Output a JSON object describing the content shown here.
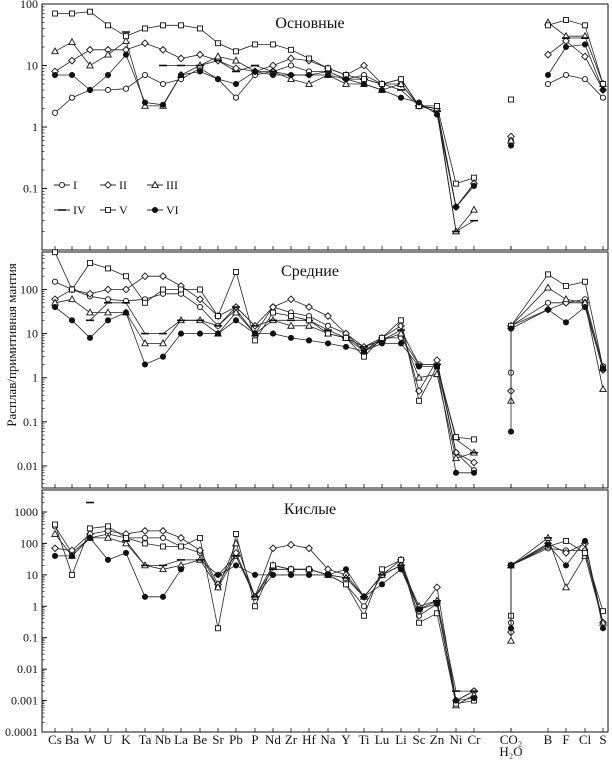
{
  "chart_data": {
    "type": "line",
    "ylabel": "Расплав/примитивная мантия",
    "yscale": "log",
    "categories": [
      "Cs",
      "Ba",
      "W",
      "U",
      "K",
      "Ta",
      "Nb",
      "La",
      "Be",
      "Sr",
      "Pb",
      "P",
      "Nd",
      "Zr",
      "Hf",
      "Na",
      "Y",
      "Ti",
      "Lu",
      "Li",
      "Sc",
      "Zn",
      "Ni",
      "Cr",
      "CO2",
      "H2O",
      "B",
      "F",
      "Cl",
      "S"
    ],
    "category_labels": [
      "Cs",
      "Ba",
      "W",
      "U",
      "K",
      "Ta",
      "Nb",
      "La",
      "Be",
      "Sr",
      "Pb",
      "P",
      "Nd",
      "Zr",
      "Hf",
      "Na",
      "Y",
      "Ti",
      "Lu",
      "Li",
      "Sc",
      "Zn",
      "Ni",
      "Cr",
      "CO₂",
      "H₂O",
      "B",
      "F",
      "Cl",
      "S"
    ],
    "legend": {
      "location": "upper-left of top panel",
      "entries": [
        "I",
        "II",
        "III",
        "IV",
        "V",
        "VI"
      ]
    },
    "series_styles": {
      "I": {
        "marker": "circle-open"
      },
      "II": {
        "marker": "diamond-open"
      },
      "III": {
        "marker": "triangle-open"
      },
      "IV": {
        "marker": "dash"
      },
      "V": {
        "marker": "square-open"
      },
      "VI": {
        "marker": "circle-filled"
      }
    },
    "panels": [
      {
        "title": "Основные",
        "ylim": [
          0.01,
          100
        ],
        "yticks": [
          "100",
          "10",
          "1",
          "0.1"
        ],
        "series": [
          {
            "name": "I",
            "values": [
              1.7,
              3,
              4,
              4,
              4.2,
              7,
              5,
              6,
              9,
              6,
              3,
              7,
              8,
              10,
              8,
              8,
              6,
              7,
              5,
              6,
              2.2,
              2,
              0.05,
              0.12,
              0.6,
              null,
              5,
              7,
              6,
              3
            ]
          },
          {
            "name": "II",
            "values": [
              8,
              12,
              18,
              18,
              18,
              23,
              18,
              13,
              15,
              12,
              9,
              8,
              10,
              13,
              12,
              9,
              7,
              10,
              5,
              5,
              2.2,
              2,
              0.05,
              0.12,
              0.7,
              null,
              15,
              25,
              14,
              4
            ]
          },
          {
            "name": "III",
            "values": [
              17,
              24,
              10,
              15,
              25,
              2.2,
              2.2,
              7,
              10,
              14,
              12,
              8,
              8,
              6,
              5,
              7,
              5,
              5,
              4,
              5,
              2.2,
              2,
              0.02,
              0.045,
              0.6,
              null,
              50,
              30,
              30,
              5
            ]
          },
          {
            "name": "IV",
            "values": [
              null,
              null,
              null,
              null,
              35,
              null,
              10,
              10,
              10,
              12,
              8,
              10,
              8,
              7,
              7,
              8,
              6,
              6,
              5,
              4,
              2.2,
              1.8,
              0.02,
              0.03,
              null,
              null,
              null,
              28,
              28,
              null
            ]
          },
          {
            "name": "V",
            "values": [
              70,
              70,
              75,
              45,
              30,
              40,
              45,
              45,
              40,
              23,
              17,
              22,
              22,
              18,
              13,
              9,
              7,
              6,
              5,
              6,
              2.2,
              2.2,
              0.12,
              0.15,
              2.8,
              null,
              45,
              55,
              45,
              5
            ]
          },
          {
            "name": "VI",
            "values": [
              7,
              7,
              4,
              7,
              15,
              2.5,
              2.3,
              7,
              8,
              6,
              5,
              8,
              7,
              7,
              7,
              7,
              6,
              5,
              4,
              3,
              2.5,
              1.6,
              0.05,
              0.11,
              0.5,
              null,
              7,
              20,
              22,
              4
            ]
          }
        ]
      },
      {
        "title": "Средние",
        "ylim": [
          0.003,
          700
        ],
        "yticks": [
          "100",
          "10",
          "1",
          "0.1",
          "0.01"
        ],
        "series": [
          {
            "name": "I",
            "values": [
              150,
              100,
              70,
              60,
              55,
              60,
              80,
              80,
              40,
              15,
              35,
              10,
              40,
              30,
              25,
              15,
              10,
              4,
              8,
              8,
              2,
              2,
              0.02,
              0.008,
              1.3,
              15,
              50,
              50,
              60,
              1.8
            ]
          },
          {
            "name": "II",
            "values": [
              60,
              100,
              80,
              100,
              100,
              200,
              200,
              120,
              60,
              25,
              40,
              15,
              40,
              60,
              40,
              25,
              10,
              5,
              8,
              15,
              0.5,
              2.5,
              0.02,
              0.012,
              0.5,
              15,
              35,
              50,
              50,
              1.5
            ]
          },
          {
            "name": "III",
            "values": [
              50,
              60,
              30,
              30,
              30,
              6,
              6,
              20,
              20,
              10,
              30,
              10,
              20,
              15,
              15,
              10,
              8,
              4,
              7,
              10,
              1,
              1.2,
              0.015,
              0.02,
              0.3,
              15,
              110,
              60,
              50,
              0.55
            ]
          },
          {
            "name": "IV",
            "values": [
              null,
              null,
              20,
              50,
              50,
              10,
              10,
              20,
              20,
              15,
              40,
              15,
              20,
              20,
              20,
              12,
              8,
              5,
              7,
              12,
              2,
              2,
              0.04,
              0.02,
              null,
              null,
              null,
              null,
              null,
              null
            ]
          },
          {
            "name": "V",
            "values": [
              700,
              100,
              400,
              300,
              200,
              50,
              100,
              100,
              100,
              25,
              250,
              7,
              30,
              25,
              20,
              10,
              8,
              3,
              8,
              20,
              0.3,
              1.8,
              0.045,
              0.04,
              null,
              15,
              220,
              120,
              150,
              1.7
            ]
          },
          {
            "name": "VI",
            "values": [
              40,
              20,
              8,
              20,
              30,
              2,
              3,
              10,
              10,
              10,
              20,
              10,
              10,
              8,
              7,
              6,
              5,
              4,
              6,
              6,
              1.8,
              1.8,
              0.007,
              0.007,
              0.06,
              13,
              35,
              18,
              40,
              1.6
            ]
          }
        ]
      },
      {
        "title": "Кислые",
        "ylim": [
          0.0001,
          5000
        ],
        "yticks": [
          "1000",
          "100",
          "10",
          "1",
          "0.1",
          "0.01",
          "0.001",
          "0.0001"
        ],
        "series": [
          {
            "name": "I",
            "values": [
              350,
              50,
              150,
              200,
              150,
              150,
              150,
              80,
              50,
              4,
              40,
              2,
              10,
              10,
              10,
              10,
              5,
              1,
              10,
              20,
              0.5,
              1.2,
              0.001,
              0.002,
              0.3,
              20,
              70,
              60,
              60,
              0.3
            ]
          },
          {
            "name": "II",
            "values": [
              70,
              60,
              200,
              250,
              200,
              250,
              250,
              150,
              60,
              5,
              50,
              2,
              70,
              90,
              70,
              15,
              10,
              2,
              10,
              30,
              0.7,
              4,
              0.001,
              0.002,
              0.15,
              20,
              100,
              50,
              100,
              0.3
            ]
          },
          {
            "name": "III",
            "values": [
              200,
              40,
              150,
              150,
              100,
              20,
              15,
              20,
              30,
              4,
              100,
              2,
              20,
              15,
              15,
              10,
              8,
              2,
              10,
              20,
              1,
              1.5,
              0.0007,
              0.0015,
              0.08,
              20,
              150,
              4,
              40,
              0.3
            ]
          },
          {
            "name": "IV",
            "values": [
              null,
              null,
              2000,
              null,
              120,
              20,
              20,
              30,
              30,
              10,
              40,
              2,
              15,
              15,
              15,
              10,
              8,
              2,
              10,
              20,
              0.8,
              1.5,
              0.002,
              0.002,
              null,
              null,
              150,
              null,
              null,
              null
            ]
          },
          {
            "name": "V",
            "values": [
              400,
              10,
              300,
              350,
              150,
              100,
              80,
              80,
              150,
              0.2,
              200,
              1,
              20,
              15,
              15,
              10,
              5,
              0.5,
              15,
              30,
              0.3,
              0.6,
              0.0008,
              0.001,
              0.5,
              20,
              80,
              120,
              50,
              0.7
            ]
          },
          {
            "name": "VI",
            "values": [
              40,
              40,
              150,
              30,
              50,
              2,
              2,
              15,
              null,
              10,
              20,
              10,
              10,
              10,
              10,
              10,
              15,
              2,
              5,
              15,
              0.8,
              1.2,
              0.001,
              0.0012,
              0.2,
              20,
              90,
              20,
              120,
              0.2
            ]
          }
        ]
      }
    ]
  }
}
